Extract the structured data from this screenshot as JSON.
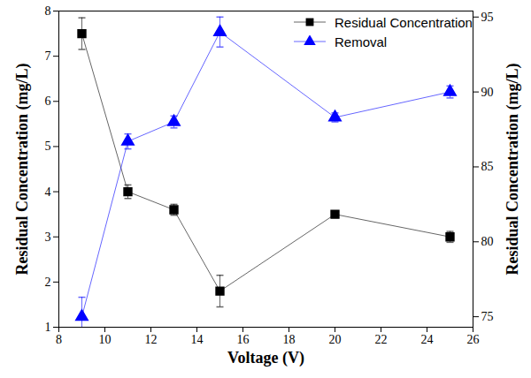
{
  "chart_data": {
    "type": "line",
    "x_label": "Voltage (V)",
    "y_label": "Residual Concentration (mg/L)",
    "y2_label": "Residual Concentration (mg/L)",
    "xlim": [
      8,
      26
    ],
    "xticks": [
      8,
      10,
      12,
      14,
      16,
      18,
      20,
      22,
      24,
      26
    ],
    "ylim": [
      1,
      8
    ],
    "yticks": [
      1,
      2,
      3,
      4,
      5,
      6,
      7,
      8
    ],
    "y2lim": [
      74.3,
      95.4
    ],
    "y2ticks": [
      75,
      80,
      85,
      90,
      95
    ],
    "grid": false,
    "legend": "top-right",
    "series": [
      {
        "name": "Residual Concentration",
        "color": "#000000",
        "marker": "square",
        "axis": "y",
        "x": [
          9,
          11,
          13,
          15,
          20,
          25
        ],
        "values": [
          7.5,
          4.0,
          3.6,
          1.8,
          3.5,
          3.0
        ],
        "errors": [
          0.35,
          0.15,
          0.12,
          0.35,
          0.06,
          0.12
        ]
      },
      {
        "name": "Removal",
        "color": "#0000ff",
        "marker": "triangle",
        "axis": "y2",
        "x": [
          9,
          11,
          13,
          15,
          20,
          25
        ],
        "values": [
          75.0,
          86.7,
          88.0,
          94.0,
          88.3,
          90.0
        ],
        "errors": [
          1.3,
          0.5,
          0.4,
          1.0,
          0.3,
          0.4
        ]
      }
    ]
  }
}
